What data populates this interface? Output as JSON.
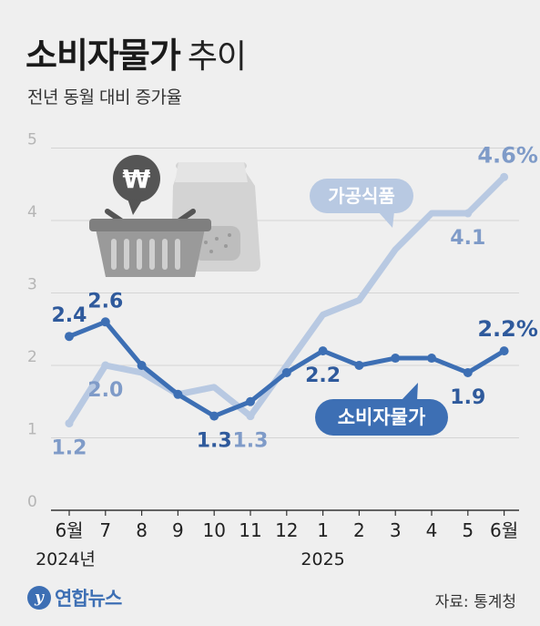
{
  "title": {
    "main": "소비자물가",
    "sub": "추이"
  },
  "subtitle": "전년 동월 대비 증가율",
  "footer": {
    "logo_mark": "y",
    "logo_text": "연합뉴스",
    "source": "자료: 통계청"
  },
  "colors": {
    "background": "#efefef",
    "consumer_prices": "#3d6fb4",
    "processed_food": "#b8c9e2",
    "label_dark": "#2f5a9c",
    "label_light": "#7f9bc8",
    "grid": "#d4d4d4"
  },
  "icons": [
    "won-coin-icon",
    "shopping-basket-icon",
    "food-bag-icon"
  ],
  "chart_data": {
    "type": "line",
    "x": [
      "6월",
      "7",
      "8",
      "9",
      "10",
      "11",
      "12",
      "1",
      "2",
      "3",
      "4",
      "5",
      "6월"
    ],
    "year_labels": [
      {
        "index": 0,
        "text": "2024년"
      },
      {
        "index": 7,
        "text": "2025"
      }
    ],
    "ylim": [
      0,
      5
    ],
    "yticks": [
      0,
      1,
      2,
      3,
      4,
      5
    ],
    "grid": true,
    "series": [
      {
        "name": "가공식품",
        "style": "light",
        "values": [
          1.2,
          2.0,
          1.9,
          1.6,
          1.7,
          1.3,
          2.0,
          2.7,
          2.9,
          3.6,
          4.1,
          4.1,
          4.6
        ],
        "point_labels": [
          {
            "index": 0,
            "text": "1.2",
            "pos": "below"
          },
          {
            "index": 1,
            "text": "2.0",
            "pos": "below"
          },
          {
            "index": 5,
            "text": "1.3",
            "pos": "below"
          },
          {
            "index": 11,
            "text": "4.1",
            "pos": "below"
          },
          {
            "index": 12,
            "text": "4.6%",
            "pos": "above"
          }
        ]
      },
      {
        "name": "소비자물가",
        "style": "dark",
        "values": [
          2.4,
          2.6,
          2.0,
          1.6,
          1.3,
          1.5,
          1.9,
          2.2,
          2.0,
          2.1,
          2.1,
          1.9,
          2.2
        ],
        "point_labels": [
          {
            "index": 0,
            "text": "2.4",
            "pos": "above"
          },
          {
            "index": 1,
            "text": "2.6",
            "pos": "above"
          },
          {
            "index": 4,
            "text": "1.3",
            "pos": "below"
          },
          {
            "index": 7,
            "text": "2.2",
            "pos": "below"
          },
          {
            "index": 11,
            "text": "1.9",
            "pos": "below"
          },
          {
            "index": 12,
            "text": "2.2%",
            "pos": "above"
          }
        ]
      }
    ]
  }
}
